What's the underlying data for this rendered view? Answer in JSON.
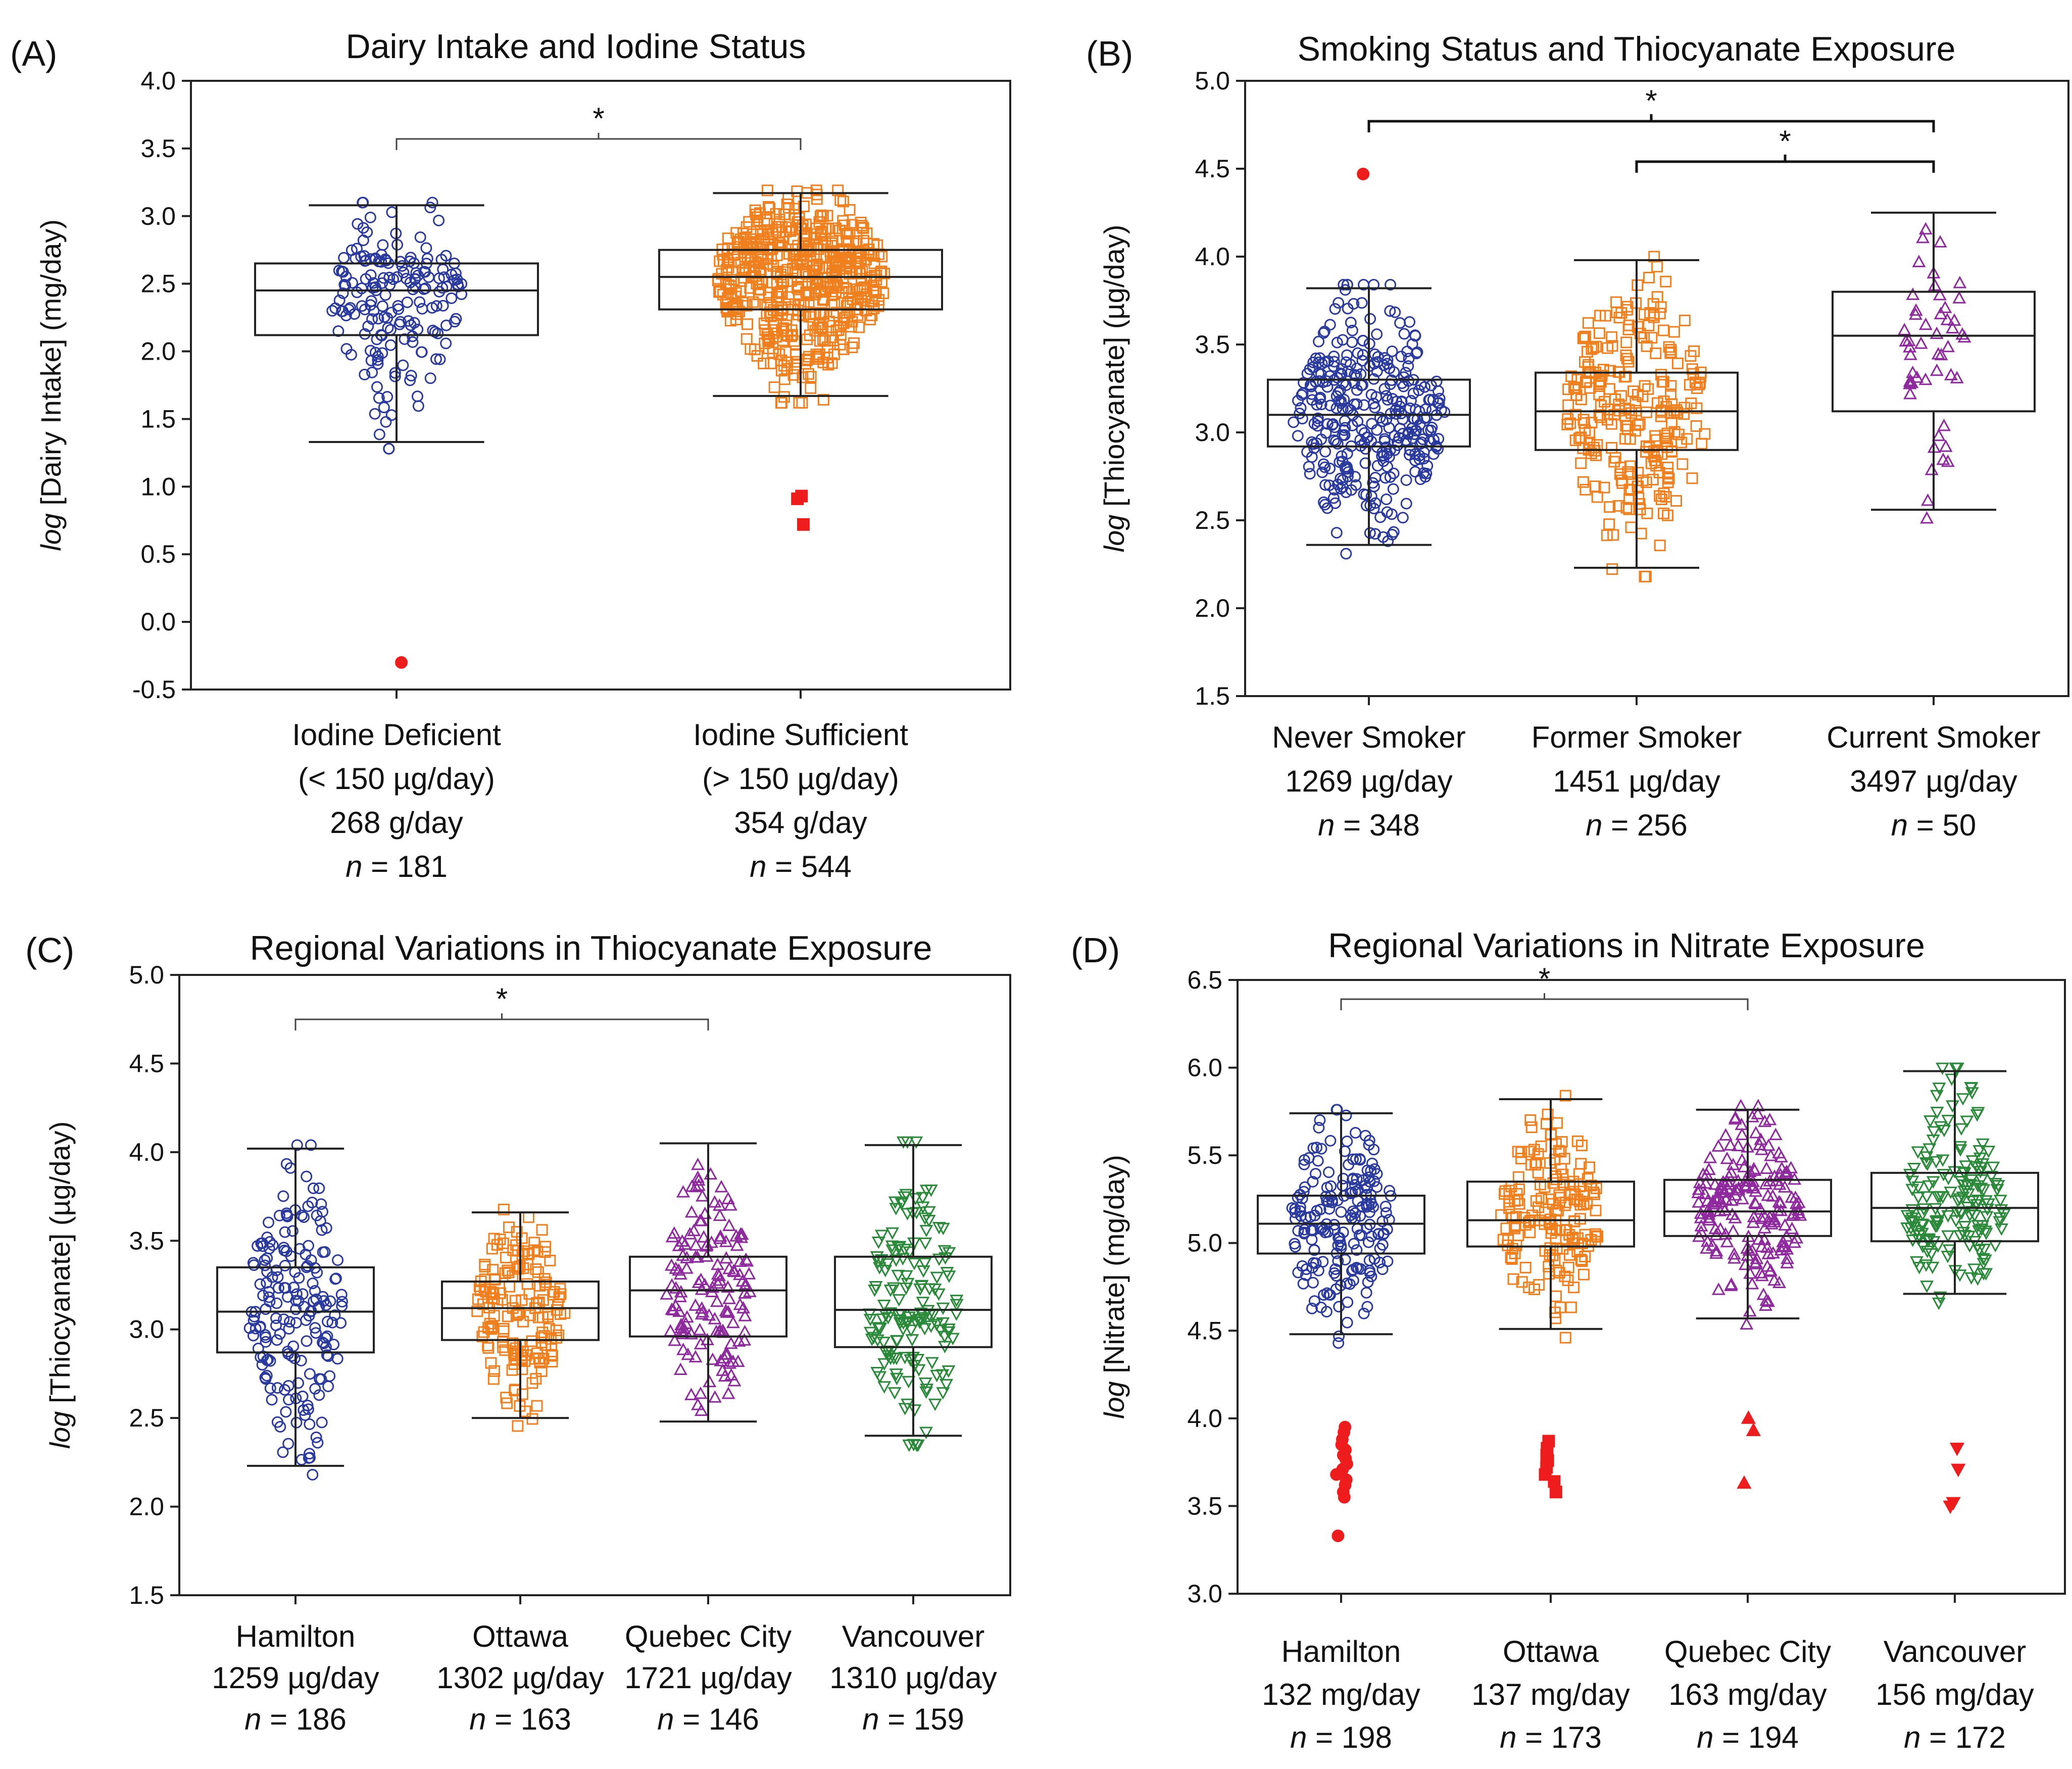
{
  "chart_data": [
    {
      "type": "box-scatter",
      "panel": "(A)",
      "title": "Dairy Intake and Iodine Status",
      "ylabel_italic": "log",
      "ylabel": "[Dairy Intake] (mg/day)",
      "ylim": [
        -0.5,
        4.0
      ],
      "yticks": [
        "4.0",
        "3.5",
        "3.0",
        "2.5",
        "2.0",
        "1.5",
        "1.0",
        "0.5",
        "0.0",
        "-0.5"
      ],
      "significance": [
        {
          "from": 0,
          "to": 1,
          "label": "*"
        }
      ],
      "groups": [
        {
          "lines": [
            "Iodine Deficient",
            "(< 150 µg/day)",
            "268 g/day"
          ],
          "n_label": "= 181",
          "n": 181,
          "marker": "circle",
          "color": "#2b3a9e",
          "q1": 2.12,
          "median": 2.45,
          "q3": 2.65,
          "whisker_low": 1.33,
          "whisker_high": 3.08,
          "outliers": [
            -0.3
          ]
        },
        {
          "lines": [
            "Iodine Sufficient",
            "(> 150 µg/day)",
            "354 g/day"
          ],
          "n_label": "= 544",
          "n": 544,
          "marker": "square",
          "color": "#f07f1e",
          "q1": 2.31,
          "median": 2.55,
          "q3": 2.75,
          "whisker_low": 1.67,
          "whisker_high": 3.17,
          "outliers": [
            0.91,
            0.93,
            0.72
          ]
        }
      ]
    },
    {
      "type": "box-scatter",
      "panel": "(B)",
      "title": "Smoking Status and Thiocyanate Exposure",
      "ylabel_italic": "log",
      "ylabel": "[Thiocyanate] (µg/day)",
      "ylim": [
        1.5,
        5.0
      ],
      "yticks": [
        "5.0",
        "4.5",
        "4.0",
        "3.5",
        "3.0",
        "2.5",
        "2.0",
        "1.5"
      ],
      "significance": [
        {
          "from": 0,
          "to": 2,
          "label": "*"
        },
        {
          "from": 1,
          "to": 2,
          "label": "*"
        }
      ],
      "groups": [
        {
          "lines": [
            "Never Smoker",
            "1269 µg/day"
          ],
          "n_label": "= 348",
          "n": 348,
          "marker": "circle",
          "color": "#2b3a9e",
          "q1": 2.92,
          "median": 3.1,
          "q3": 3.3,
          "whisker_low": 2.36,
          "whisker_high": 3.82,
          "outliers": [
            4.47
          ]
        },
        {
          "lines": [
            "Former Smoker",
            "1451 µg/day"
          ],
          "n_label": "= 256",
          "n": 256,
          "marker": "square",
          "color": "#f07f1e",
          "q1": 2.9,
          "median": 3.12,
          "q3": 3.34,
          "whisker_low": 2.23,
          "whisker_high": 3.98,
          "outliers": []
        },
        {
          "lines": [
            "Current Smoker",
            "3497 µg/day"
          ],
          "n_label": "= 50",
          "n": 50,
          "marker": "triangle",
          "color": "#8e2a9e",
          "q1": 3.12,
          "median": 3.55,
          "q3": 3.8,
          "whisker_low": 2.56,
          "whisker_high": 4.25,
          "outliers": []
        }
      ]
    },
    {
      "type": "box-scatter",
      "panel": "(C)",
      "title": "Regional Variations in Thiocyanate Exposure",
      "ylabel_italic": "log",
      "ylabel": "[Thiocyanate] (µg/day)",
      "ylim": [
        1.5,
        5.0
      ],
      "yticks": [
        "5.0",
        "4.5",
        "4.0",
        "3.5",
        "3.0",
        "2.5",
        "2.0",
        "1.5"
      ],
      "significance": [
        {
          "from": 0,
          "to": 2,
          "label": "*"
        }
      ],
      "groups": [
        {
          "lines": [
            "Hamilton",
            "1259 µg/day"
          ],
          "n_label": "= 186",
          "n": 186,
          "marker": "circle",
          "color": "#2b3a9e",
          "q1": 2.87,
          "median": 3.1,
          "q3": 3.35,
          "whisker_low": 2.23,
          "whisker_high": 4.02,
          "outliers": []
        },
        {
          "lines": [
            "Ottawa",
            "1302 µg/day"
          ],
          "n_label": "= 163",
          "n": 163,
          "marker": "square",
          "color": "#f07f1e",
          "q1": 2.94,
          "median": 3.12,
          "q3": 3.27,
          "whisker_low": 2.5,
          "whisker_high": 3.66,
          "outliers": []
        },
        {
          "lines": [
            "Quebec City",
            "1721 µg/day"
          ],
          "n_label": "= 146",
          "n": 146,
          "marker": "triangle",
          "color": "#8e2a9e",
          "q1": 2.96,
          "median": 3.22,
          "q3": 3.41,
          "whisker_low": 2.48,
          "whisker_high": 4.05,
          "outliers": []
        },
        {
          "lines": [
            "Vancouver",
            "1310 µg/day"
          ],
          "n_label": "= 159",
          "n": 159,
          "marker": "triangle-down",
          "color": "#2a8a3a",
          "q1": 2.9,
          "median": 3.11,
          "q3": 3.41,
          "whisker_low": 2.4,
          "whisker_high": 4.04,
          "outliers": []
        }
      ]
    },
    {
      "type": "box-scatter",
      "panel": "(D)",
      "title": "Regional Variations in Nitrate Exposure",
      "ylabel_italic": "log",
      "ylabel": "[Nitrate] (mg/day)",
      "ylim": [
        3.0,
        6.5
      ],
      "yticks": [
        "6.5",
        "6.0",
        "5.5",
        "5.0",
        "4.5",
        "4.0",
        "3.5",
        "3.0"
      ],
      "significance": [
        {
          "from": 0,
          "to": 2,
          "label": "*"
        }
      ],
      "groups": [
        {
          "lines": [
            "Hamilton",
            "132 mg/day"
          ],
          "n_label": "= 198",
          "n": 198,
          "marker": "circle",
          "color": "#2b3a9e",
          "q1": 4.94,
          "median": 5.11,
          "q3": 5.27,
          "whisker_low": 4.48,
          "whisker_high": 5.74,
          "outliers": [
            3.95,
            3.92,
            3.88,
            3.85,
            3.82,
            3.79,
            3.77,
            3.74,
            3.71,
            3.68,
            3.65,
            3.62,
            3.58,
            3.55,
            3.33
          ]
        },
        {
          "lines": [
            "Ottawa",
            "137 mg/day"
          ],
          "n_label": "= 173",
          "n": 173,
          "marker": "square",
          "color": "#f07f1e",
          "q1": 4.98,
          "median": 5.13,
          "q3": 5.35,
          "whisker_low": 4.51,
          "whisker_high": 5.82,
          "outliers": [
            3.87,
            3.83,
            3.79,
            3.76,
            3.72,
            3.68,
            3.64,
            3.58
          ]
        },
        {
          "lines": [
            "Quebec City",
            "163 mg/day"
          ],
          "n_label": "= 194",
          "n": 194,
          "marker": "triangle",
          "color": "#8e2a9e",
          "q1": 5.04,
          "median": 5.18,
          "q3": 5.36,
          "whisker_low": 4.57,
          "whisker_high": 5.76,
          "outliers": [
            4.0,
            3.93,
            3.63
          ]
        },
        {
          "lines": [
            "Vancouver",
            "156 mg/day"
          ],
          "n_label": "= 172",
          "n": 172,
          "marker": "triangle-down",
          "color": "#2a8a3a",
          "q1": 5.01,
          "median": 5.2,
          "q3": 5.4,
          "whisker_low": 4.71,
          "whisker_high": 5.98,
          "outliers": [
            3.83,
            3.71,
            3.52,
            3.5
          ]
        }
      ]
    }
  ]
}
